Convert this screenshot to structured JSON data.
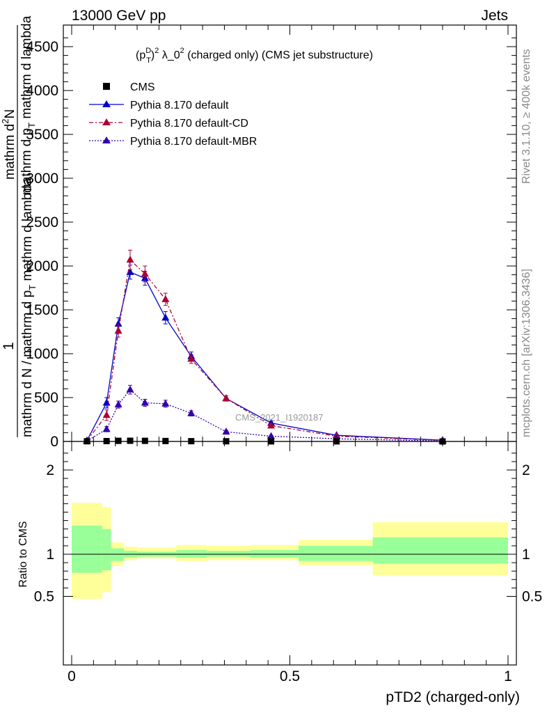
{
  "header": {
    "left": "13000 GeV pp",
    "right": "Jets"
  },
  "side_labels": {
    "rivet": "Rivet 3.1.10, ≥ 400k events",
    "mcplots": "mcplots.cern.ch [arXiv:1306.3436]"
  },
  "chart_data": {
    "type": "line",
    "title_parts": {
      "base": "(p",
      "sup1": "D",
      "sub1": "T",
      "close": ")",
      "sup2": "2",
      "mid": " λ_0",
      "sup3": "2",
      "tail": " (charged only) (CMS jet substructure)"
    },
    "ylabel_main": {
      "one": "1",
      "den": "mathrm d N / mathrm d p",
      "den_sub": "T",
      "den2": " mathrm d lambda",
      "num": "mathrm d",
      "num_sup": "2",
      "num2": "N",
      "mid": "mathrm d p",
      "mid_sub": "T",
      "tail": " mathrm d lambda"
    },
    "ylabel_ratio": "Ratio to CMS",
    "xlabel": "pTD2 (charged-only)",
    "watermark": "CMS_2021_I1920187",
    "xlim": [
      0,
      1
    ],
    "ylim": [
      0,
      4700
    ],
    "ratio_ylim": [
      0.4,
      2.3
    ],
    "y_ticks": [
      "0",
      "500",
      "1000",
      "1500",
      "2000",
      "2500",
      "3000",
      "3500",
      "4000",
      "4500"
    ],
    "x_ticks": [
      "0",
      "0.5",
      "1"
    ],
    "ratio_ticks": [
      "0.5",
      "1",
      "2"
    ],
    "legend": [
      "CMS",
      "Pythia 8.170 default",
      "Pythia 8.170 default-CD",
      "Pythia 8.170 default-MBR"
    ],
    "colors": {
      "cms": "#000000",
      "default": "#0000cc",
      "cd": "#aa0033",
      "mbr": "#3300aa",
      "band_outer": "#ffff99",
      "band_inner": "#99ff99"
    },
    "cms": {
      "x": [
        0.035,
        0.08,
        0.107,
        0.134,
        0.168,
        0.215,
        0.274,
        0.354,
        0.457,
        0.607,
        0.85
      ],
      "y": [
        2,
        4,
        7,
        8,
        7,
        5,
        3,
        2,
        1,
        1,
        0
      ]
    },
    "series": [
      {
        "name": "Pythia 8.170 default",
        "key": "default",
        "x": [
          0.035,
          0.08,
          0.107,
          0.134,
          0.168,
          0.215,
          0.274,
          0.354,
          0.457,
          0.607,
          0.85
        ],
        "y": [
          10,
          440,
          1340,
          1930,
          1860,
          1410,
          970,
          490,
          210,
          70,
          15
        ],
        "err": [
          5,
          60,
          70,
          80,
          80,
          70,
          50,
          30,
          20,
          10,
          5
        ]
      },
      {
        "name": "Pythia 8.170 default-CD",
        "key": "cd",
        "x": [
          0.035,
          0.08,
          0.107,
          0.134,
          0.168,
          0.215,
          0.274,
          0.354,
          0.457,
          0.607,
          0.85
        ],
        "y": [
          10,
          300,
          1260,
          2070,
          1910,
          1620,
          940,
          490,
          180,
          60,
          12
        ],
        "err": [
          5,
          60,
          70,
          110,
          90,
          70,
          50,
          30,
          20,
          10,
          5
        ]
      },
      {
        "name": "Pythia 8.170 default-MBR",
        "key": "mbr",
        "x": [
          0.035,
          0.08,
          0.107,
          0.134,
          0.168,
          0.215,
          0.274,
          0.354,
          0.457,
          0.607,
          0.85
        ],
        "y": [
          5,
          140,
          420,
          590,
          440,
          430,
          320,
          110,
          60,
          30,
          5
        ],
        "err": [
          3,
          30,
          40,
          50,
          40,
          40,
          30,
          15,
          10,
          5,
          3
        ]
      }
    ],
    "ratio_bands": [
      {
        "x0": 0.0,
        "x1": 0.07,
        "outer": [
          0.47,
          1.61
        ],
        "inner": [
          0.78,
          1.34
        ]
      },
      {
        "x0": 0.07,
        "x1": 0.09,
        "outer": [
          0.55,
          1.56
        ],
        "inner": [
          0.81,
          1.3
        ]
      },
      {
        "x0": 0.09,
        "x1": 0.12,
        "outer": [
          0.86,
          1.14
        ],
        "inner": [
          0.92,
          1.07
        ]
      },
      {
        "x0": 0.12,
        "x1": 0.15,
        "outer": [
          0.93,
          1.09
        ],
        "inner": [
          0.96,
          1.04
        ]
      },
      {
        "x0": 0.15,
        "x1": 0.19,
        "outer": [
          0.95,
          1.08
        ],
        "inner": [
          0.97,
          1.03
        ]
      },
      {
        "x0": 0.19,
        "x1": 0.24,
        "outer": [
          0.95,
          1.08
        ],
        "inner": [
          0.97,
          1.03
        ]
      },
      {
        "x0": 0.24,
        "x1": 0.31,
        "outer": [
          0.92,
          1.11
        ],
        "inner": [
          0.96,
          1.05
        ]
      },
      {
        "x0": 0.31,
        "x1": 0.41,
        "outer": [
          0.93,
          1.1
        ],
        "inner": [
          0.97,
          1.04
        ]
      },
      {
        "x0": 0.41,
        "x1": 0.52,
        "outer": [
          0.93,
          1.11
        ],
        "inner": [
          0.96,
          1.05
        ]
      },
      {
        "x0": 0.52,
        "x1": 0.69,
        "outer": [
          0.87,
          1.17
        ],
        "inner": [
          0.92,
          1.1
        ]
      },
      {
        "x0": 0.69,
        "x1": 1.0,
        "outer": [
          0.75,
          1.38
        ],
        "inner": [
          0.89,
          1.2
        ]
      }
    ]
  }
}
